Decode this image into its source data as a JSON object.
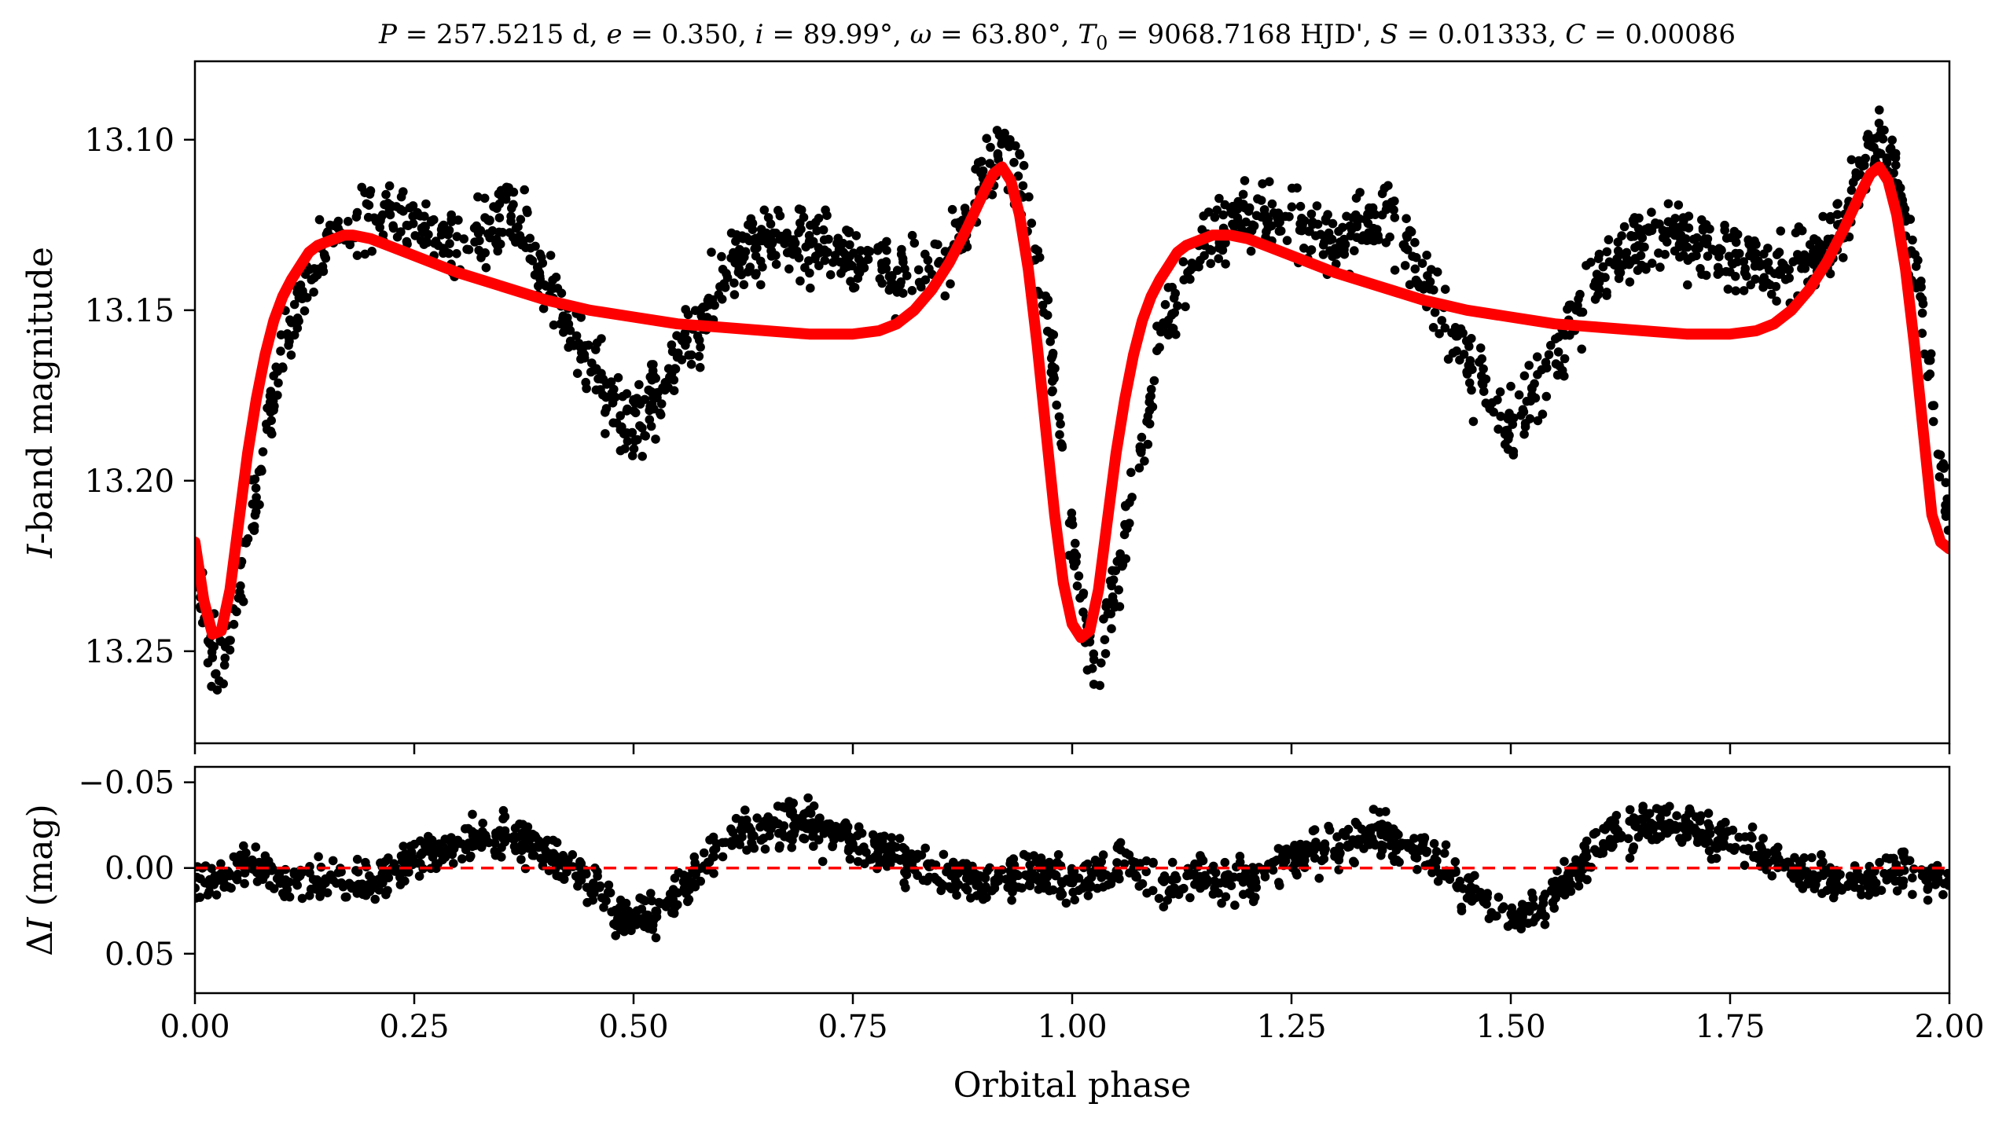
{
  "chart_data": [
    {
      "type": "scatter",
      "panel": "top",
      "title": "P = 257.5215 d, e = 0.350, i = 89.99°, ω = 63.80°, T₀ = 9068.7168 HJD', S = 0.01333, C = 0.00086",
      "title_parts": {
        "P": "P",
        "eq1": " = 257.5215 d, ",
        "e": "e",
        "eq2": " = 0.350, ",
        "i": "i",
        "eq3": " = 89.99°, ",
        "w": "ω",
        "eq4": " = 63.80°, ",
        "T": "T",
        "T_sub": "0",
        "eq5": " = 9068.7168 HJD', ",
        "S": "S",
        "eq6": " = 0.01333, ",
        "C": "C",
        "eq7": " = 0.00086"
      },
      "xlabel": "",
      "ylabel_italic": "I",
      "ylabel_rest": "-band magnitude",
      "xlim": [
        0.0,
        2.0
      ],
      "ylim": [
        13.277,
        13.077
      ],
      "y_inverted": true,
      "yticks": [
        13.1,
        13.15,
        13.2,
        13.25
      ],
      "ytick_labels": [
        "13.10",
        "13.15",
        "13.20",
        "13.25"
      ],
      "xticks": [
        0.0,
        0.25,
        0.5,
        0.75,
        1.0,
        1.25,
        1.5,
        1.75,
        2.0
      ],
      "grid": false,
      "series": [
        {
          "kind": "model",
          "color": "#ff0000",
          "x": [
            0.0,
            0.01,
            0.02,
            0.03,
            0.04,
            0.05,
            0.06,
            0.07,
            0.08,
            0.09,
            0.1,
            0.11,
            0.12,
            0.13,
            0.14,
            0.15,
            0.16,
            0.17,
            0.18,
            0.2,
            0.25,
            0.3,
            0.35,
            0.4,
            0.45,
            0.5,
            0.55,
            0.6,
            0.65,
            0.7,
            0.75,
            0.78,
            0.8,
            0.82,
            0.84,
            0.86,
            0.88,
            0.9,
            0.91,
            0.92,
            0.93,
            0.94,
            0.95,
            0.96,
            0.97,
            0.98,
            0.99,
            1.0,
            1.01,
            1.02,
            1.03,
            1.04,
            1.05,
            1.06,
            1.07,
            1.08,
            1.09,
            1.1,
            1.11,
            1.12,
            1.13,
            1.14,
            1.15,
            1.16,
            1.17,
            1.18,
            1.2,
            1.25,
            1.3,
            1.35,
            1.4,
            1.45,
            1.5,
            1.55,
            1.6,
            1.65,
            1.7,
            1.75,
            1.78,
            1.8,
            1.82,
            1.84,
            1.86,
            1.88,
            1.9,
            1.91,
            1.92,
            1.93,
            1.94,
            1.95,
            1.96,
            1.97,
            1.98,
            1.99,
            2.0
          ],
          "y": [
            13.218,
            13.235,
            13.245,
            13.244,
            13.232,
            13.212,
            13.192,
            13.176,
            13.163,
            13.153,
            13.146,
            13.141,
            13.137,
            13.133,
            13.131,
            13.13,
            13.129,
            13.128,
            13.128,
            13.129,
            13.134,
            13.139,
            13.143,
            13.147,
            13.15,
            13.152,
            13.154,
            13.155,
            13.156,
            13.157,
            13.157,
            13.156,
            13.154,
            13.15,
            13.144,
            13.136,
            13.126,
            13.115,
            13.11,
            13.108,
            13.112,
            13.122,
            13.138,
            13.16,
            13.185,
            13.21,
            13.23,
            13.242,
            13.246,
            13.244,
            13.232,
            13.212,
            13.192,
            13.176,
            13.163,
            13.153,
            13.146,
            13.141,
            13.137,
            13.133,
            13.131,
            13.13,
            13.129,
            13.128,
            13.128,
            13.128,
            13.129,
            13.134,
            13.139,
            13.143,
            13.147,
            13.15,
            13.152,
            13.154,
            13.155,
            13.156,
            13.157,
            13.157,
            13.156,
            13.154,
            13.15,
            13.144,
            13.136,
            13.126,
            13.115,
            13.11,
            13.108,
            13.112,
            13.122,
            13.138,
            13.16,
            13.185,
            13.21,
            13.218,
            13.22
          ]
        },
        {
          "kind": "observations",
          "color": "#000000",
          "pattern_note": "observed light curve; envelope traced from the plot (scatter about ±0.01 mag)",
          "x": [
            0.0,
            0.02,
            0.03,
            0.05,
            0.08,
            0.1,
            0.13,
            0.15,
            0.18,
            0.2,
            0.25,
            0.3,
            0.33,
            0.36,
            0.4,
            0.44,
            0.47,
            0.5,
            0.53,
            0.56,
            0.6,
            0.65,
            0.7,
            0.75,
            0.8,
            0.85,
            0.88,
            0.9,
            0.92,
            0.94,
            0.97,
            1.0,
            1.02,
            1.03,
            1.05,
            1.08,
            1.1,
            1.13,
            1.15,
            1.18,
            1.2,
            1.25,
            1.3,
            1.33,
            1.36,
            1.4,
            1.44,
            1.47,
            1.5,
            1.53,
            1.56,
            1.6,
            1.65,
            1.7,
            1.75,
            1.8,
            1.85,
            1.88,
            1.9,
            1.92,
            1.94,
            1.97,
            2.0
          ],
          "y": [
            13.228,
            13.25,
            13.255,
            13.23,
            13.19,
            13.16,
            13.14,
            13.13,
            13.125,
            13.122,
            13.125,
            13.13,
            13.125,
            13.12,
            13.14,
            13.16,
            13.175,
            13.185,
            13.175,
            13.16,
            13.14,
            13.13,
            13.13,
            13.135,
            13.14,
            13.135,
            13.125,
            13.11,
            13.1,
            13.11,
            13.15,
            13.215,
            13.25,
            13.255,
            13.23,
            13.19,
            13.16,
            13.14,
            13.13,
            13.125,
            13.122,
            13.125,
            13.13,
            13.125,
            13.12,
            13.14,
            13.16,
            13.175,
            13.185,
            13.175,
            13.16,
            13.14,
            13.13,
            13.13,
            13.135,
            13.14,
            13.135,
            13.125,
            13.11,
            13.1,
            13.11,
            13.15,
            13.215
          ]
        }
      ]
    },
    {
      "type": "scatter",
      "panel": "bottom",
      "xlabel": "Orbital phase",
      "ylabel_delta": "Δ",
      "ylabel_italic": "I",
      "ylabel_rest": " (mag)",
      "xlim": [
        0.0,
        2.0
      ],
      "ylim": [
        0.073,
        -0.059
      ],
      "y_inverted": true,
      "yticks": [
        -0.05,
        0.0,
        0.05
      ],
      "ytick_labels": [
        "−0.05",
        "0.00",
        "0.05"
      ],
      "xticks": [
        0.0,
        0.25,
        0.5,
        0.75,
        1.0,
        1.25,
        1.5,
        1.75,
        2.0
      ],
      "xtick_labels": [
        "0.00",
        "0.25",
        "0.50",
        "0.75",
        "1.00",
        "1.25",
        "1.50",
        "1.75",
        "2.00"
      ],
      "grid": false,
      "series": [
        {
          "kind": "reference",
          "color": "#ff0000",
          "style": "dashed",
          "y_value": 0.0
        },
        {
          "kind": "residuals",
          "color": "#000000",
          "pattern_note": "residuals; envelope traced from the plot (scatter about ±0.012 mag)",
          "x": [
            0.0,
            0.03,
            0.06,
            0.1,
            0.15,
            0.2,
            0.25,
            0.3,
            0.35,
            0.4,
            0.45,
            0.48,
            0.5,
            0.53,
            0.56,
            0.6,
            0.65,
            0.7,
            0.75,
            0.8,
            0.85,
            0.9,
            0.95,
            1.0,
            1.03,
            1.06,
            1.1,
            1.15,
            1.2,
            1.25,
            1.3,
            1.35,
            1.4,
            1.45,
            1.48,
            1.5,
            1.53,
            1.56,
            1.6,
            1.65,
            1.7,
            1.75,
            1.8,
            1.85,
            1.9,
            1.95,
            2.0
          ],
          "y": [
            0.012,
            0.008,
            -0.005,
            0.01,
            0.006,
            0.01,
            -0.008,
            -0.012,
            -0.02,
            -0.01,
            0.01,
            0.025,
            0.03,
            0.025,
            0.01,
            -0.015,
            -0.025,
            -0.025,
            -0.015,
            -0.005,
            0.005,
            0.01,
            0.0,
            0.008,
            0.006,
            -0.005,
            0.01,
            0.006,
            0.01,
            -0.008,
            -0.012,
            -0.02,
            -0.01,
            0.01,
            0.025,
            0.03,
            0.025,
            0.01,
            -0.015,
            -0.025,
            -0.025,
            -0.015,
            -0.005,
            0.005,
            0.01,
            0.0,
            0.01
          ]
        }
      ]
    }
  ]
}
